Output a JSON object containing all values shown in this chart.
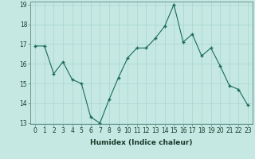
{
  "x": [
    0,
    1,
    2,
    3,
    4,
    5,
    6,
    7,
    8,
    9,
    10,
    11,
    12,
    13,
    14,
    15,
    16,
    17,
    18,
    19,
    20,
    21,
    22,
    23
  ],
  "y": [
    16.9,
    16.9,
    15.5,
    16.1,
    15.2,
    15.0,
    13.3,
    13.0,
    14.2,
    15.3,
    16.3,
    16.8,
    16.8,
    17.3,
    17.9,
    19.0,
    17.1,
    17.5,
    16.4,
    16.8,
    15.9,
    14.9,
    14.7,
    13.9
  ],
  "line_color": "#1a6b5a",
  "marker": "+",
  "marker_size": 3,
  "marker_lw": 1.0,
  "line_width": 0.8,
  "bg_color": "#c5e8e2",
  "grid_color": "#a8d5ce",
  "xlabel": "Humidex (Indice chaleur)",
  "ylim": [
    13,
    19
  ],
  "xlim": [
    -0.5,
    23.5
  ],
  "yticks": [
    13,
    14,
    15,
    16,
    17,
    18,
    19
  ],
  "xticks": [
    0,
    1,
    2,
    3,
    4,
    5,
    6,
    7,
    8,
    9,
    10,
    11,
    12,
    13,
    14,
    15,
    16,
    17,
    18,
    19,
    20,
    21,
    22,
    23
  ],
  "xlabel_fontsize": 6.5,
  "tick_fontsize": 5.5,
  "label_color": "#1a3a2a",
  "spine_color": "#5a8a80"
}
